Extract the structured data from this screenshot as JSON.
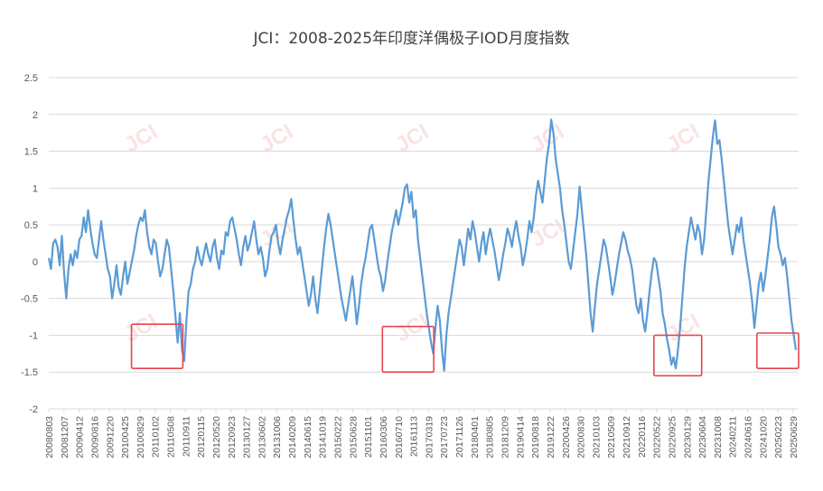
{
  "chart_data": {
    "type": "line",
    "title": "JCI：2008-2025年印度洋偶极子IOD月度指数",
    "xlabel": "",
    "ylabel": "",
    "ylim": [
      -2,
      2.5
    ],
    "yticks": [
      "2.5",
      "2",
      "1.5",
      "1",
      "0.5",
      "0",
      "-0.5",
      "-1",
      "-1.5",
      "-2"
    ],
    "xtick_labels": [
      "20080803",
      "20081207",
      "20090412",
      "20090816",
      "20091220",
      "20100425",
      "20100829",
      "20110102",
      "20110508",
      "20110911",
      "20120115",
      "20120520",
      "20120923",
      "20130127",
      "20130602",
      "20131006",
      "20140209",
      "20140615",
      "20141019",
      "20150222",
      "20150628",
      "20151101",
      "20160306",
      "20160710",
      "20161113",
      "20170319",
      "20170723",
      "20171126",
      "20180401",
      "20180805",
      "20181209",
      "20190414",
      "20190818",
      "20191222",
      "20200426",
      "20200830",
      "20210103",
      "20210509",
      "20210912",
      "20220116",
      "20220522",
      "20220925",
      "20230129",
      "20230604",
      "20231008",
      "20240211",
      "20240616",
      "20241020",
      "20250223",
      "20250629"
    ],
    "grid": true,
    "legend": "none",
    "line_color": "#5b9bd5",
    "highlight_color": "#e8434f",
    "series": [
      {
        "values": [
          0.05,
          -0.1,
          0.25,
          0.3,
          0.2,
          -0.05,
          0.35,
          -0.15,
          -0.5,
          -0.1,
          0.1,
          -0.05,
          0.15,
          0.05,
          0.3,
          0.35,
          0.6,
          0.4,
          0.7,
          0.45,
          0.25,
          0.1,
          0.05,
          0.3,
          0.55,
          0.3,
          0.1,
          -0.1,
          -0.2,
          -0.5,
          -0.3,
          -0.05,
          -0.35,
          -0.45,
          -0.2,
          0.0,
          -0.3,
          -0.15,
          0.0,
          0.15,
          0.35,
          0.5,
          0.6,
          0.55,
          0.7,
          0.4,
          0.2,
          0.1,
          0.3,
          0.25,
          0.0,
          -0.2,
          -0.1,
          0.1,
          0.3,
          0.2,
          -0.1,
          -0.4,
          -0.75,
          -1.1,
          -0.7,
          -1.2,
          -1.35,
          -0.8,
          -0.4,
          -0.3,
          -0.1,
          0.0,
          0.2,
          0.05,
          -0.05,
          0.1,
          0.25,
          0.1,
          0.0,
          0.2,
          0.3,
          0.05,
          -0.1,
          0.15,
          0.1,
          0.4,
          0.35,
          0.55,
          0.6,
          0.45,
          0.3,
          0.1,
          -0.05,
          0.2,
          0.35,
          0.15,
          0.25,
          0.4,
          0.55,
          0.3,
          0.1,
          0.2,
          0.05,
          -0.2,
          -0.1,
          0.15,
          0.35,
          0.4,
          0.5,
          0.25,
          0.1,
          0.3,
          0.45,
          0.6,
          0.7,
          0.85,
          0.55,
          0.3,
          0.1,
          0.2,
          0.0,
          -0.2,
          -0.4,
          -0.6,
          -0.45,
          -0.2,
          -0.5,
          -0.7,
          -0.4,
          -0.1,
          0.2,
          0.45,
          0.65,
          0.5,
          0.3,
          0.1,
          -0.1,
          -0.3,
          -0.5,
          -0.65,
          -0.8,
          -0.6,
          -0.4,
          -0.2,
          -0.5,
          -0.85,
          -0.6,
          -0.3,
          -0.1,
          0.05,
          0.25,
          0.45,
          0.5,
          0.3,
          0.1,
          -0.1,
          -0.2,
          -0.4,
          -0.25,
          0.0,
          0.2,
          0.4,
          0.55,
          0.7,
          0.5,
          0.65,
          0.8,
          1.0,
          1.05,
          0.8,
          0.95,
          0.6,
          0.7,
          0.3,
          0.05,
          -0.2,
          -0.45,
          -0.7,
          -0.9,
          -1.1,
          -1.25,
          -0.9,
          -0.6,
          -0.8,
          -1.2,
          -1.48,
          -1.0,
          -0.7,
          -0.5,
          -0.3,
          -0.1,
          0.1,
          0.3,
          0.2,
          -0.05,
          0.2,
          0.45,
          0.3,
          0.55,
          0.4,
          0.2,
          0.0,
          0.25,
          0.4,
          0.1,
          0.3,
          0.45,
          0.3,
          0.15,
          -0.05,
          -0.25,
          -0.1,
          0.1,
          0.25,
          0.45,
          0.35,
          0.2,
          0.4,
          0.55,
          0.35,
          0.2,
          -0.05,
          0.1,
          0.3,
          0.55,
          0.4,
          0.6,
          0.9,
          1.1,
          0.95,
          0.8,
          1.1,
          1.4,
          1.6,
          1.93,
          1.75,
          1.4,
          1.2,
          1.0,
          0.7,
          0.5,
          0.25,
          0.0,
          -0.1,
          0.15,
          0.4,
          0.65,
          1.02,
          0.7,
          0.4,
          0.1,
          -0.3,
          -0.7,
          -0.95,
          -0.6,
          -0.3,
          -0.1,
          0.1,
          0.3,
          0.2,
          0.0,
          -0.2,
          -0.45,
          -0.3,
          -0.1,
          0.1,
          0.25,
          0.4,
          0.3,
          0.15,
          0.05,
          -0.1,
          -0.35,
          -0.6,
          -0.7,
          -0.5,
          -0.8,
          -0.95,
          -0.7,
          -0.4,
          -0.15,
          0.05,
          0.0,
          -0.2,
          -0.4,
          -0.7,
          -0.85,
          -1.05,
          -1.2,
          -1.4,
          -1.3,
          -1.45,
          -1.2,
          -0.9,
          -0.5,
          -0.1,
          0.2,
          0.4,
          0.6,
          0.45,
          0.3,
          0.5,
          0.4,
          0.1,
          0.3,
          0.7,
          1.1,
          1.4,
          1.7,
          1.92,
          1.6,
          1.65,
          1.4,
          1.1,
          0.8,
          0.5,
          0.3,
          0.1,
          0.3,
          0.5,
          0.4,
          0.6,
          0.3,
          0.1,
          -0.1,
          -0.3,
          -0.55,
          -0.9,
          -0.6,
          -0.3,
          -0.15,
          -0.4,
          -0.2,
          0.05,
          0.3,
          0.6,
          0.75,
          0.5,
          0.2,
          0.1,
          -0.05,
          0.05,
          -0.2,
          -0.5,
          -0.8,
          -1.0,
          -1.2
        ]
      }
    ]
  },
  "watermark": "JCI",
  "highlight_boxes": [
    {
      "x_from": "20100620",
      "x_to": "20110820",
      "y_top": -0.85,
      "y_bottom": -1.45
    },
    {
      "x_from": "20160301",
      "x_to": "20170501",
      "y_top": -0.88,
      "y_bottom": -1.5
    },
    {
      "x_from": "20220501",
      "x_to": "20230601",
      "y_top": -1.0,
      "y_bottom": -1.55
    },
    {
      "x_from": "20240901",
      "x_to": "20250813",
      "y_top": -0.97,
      "y_bottom": -1.45
    }
  ]
}
